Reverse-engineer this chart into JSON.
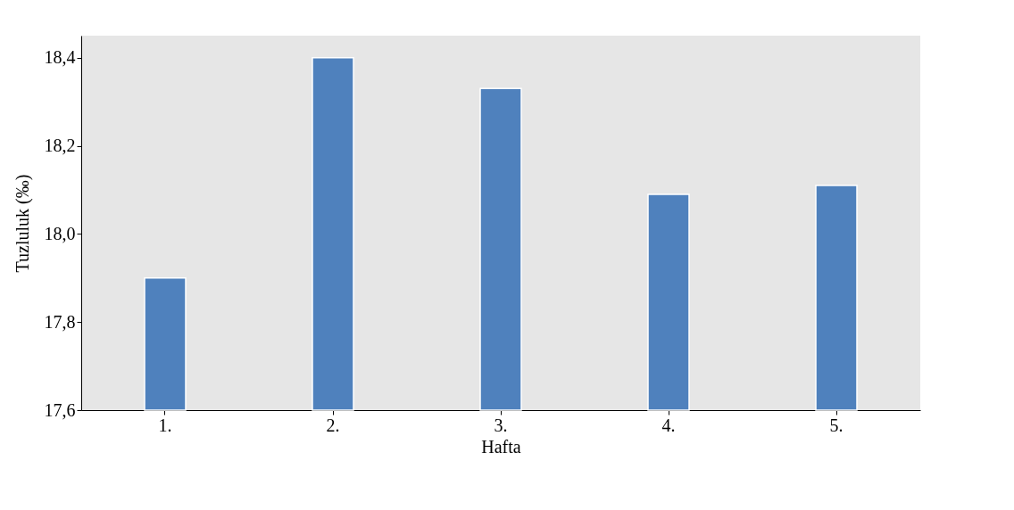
{
  "chart_data": {
    "type": "bar",
    "xlabel": "Hafta",
    "ylabel": "Tuzluluk (‰)",
    "categories": [
      "1.",
      "2.",
      "3.",
      "4.",
      "5."
    ],
    "values": [
      17.9,
      18.4,
      18.33,
      18.09,
      18.11
    ],
    "color": "#4f81bd",
    "ylim": [
      17.6,
      18.45
    ],
    "yticks": [
      {
        "value": 17.6,
        "label": "17,6"
      },
      {
        "value": 17.8,
        "label": "17,8"
      },
      {
        "value": 18.0,
        "label": "18,0"
      },
      {
        "value": 18.2,
        "label": "18,2"
      },
      {
        "value": 18.4,
        "label": "18,4"
      }
    ],
    "grid": false
  }
}
